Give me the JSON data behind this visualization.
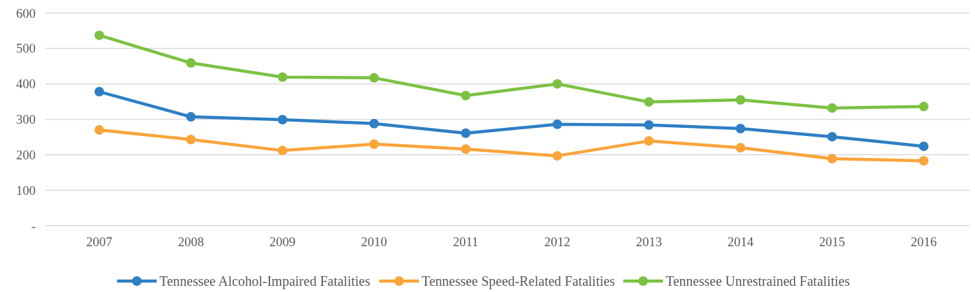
{
  "chart_data": {
    "type": "line",
    "categories": [
      "2007",
      "2008",
      "2009",
      "2010",
      "2011",
      "2012",
      "2013",
      "2014",
      "2015",
      "2016"
    ],
    "series": [
      {
        "name": "Tennessee Alcohol-Impaired Fatalities",
        "color": "#2e7fc4",
        "values": [
          378,
          307,
          299,
          288,
          261,
          286,
          284,
          274,
          251,
          224
        ]
      },
      {
        "name": "Tennessee Speed-Related Fatalities",
        "color": "#faa43a",
        "values": [
          270,
          243,
          212,
          230,
          216,
          197,
          239,
          220,
          189,
          183
        ]
      },
      {
        "name": "Tennessee Unrestrained Fatalities",
        "color": "#7cc142",
        "values": [
          537,
          459,
          419,
          417,
          367,
          400,
          349,
          355,
          332,
          336
        ]
      }
    ],
    "ylim": [
      0,
      600
    ],
    "yticks": [
      {
        "value": 0,
        "label": "-"
      },
      100,
      200,
      300,
      400,
      500,
      600
    ],
    "grid": "y",
    "legend": "bottom",
    "marker": "circle",
    "line_style": "solid"
  }
}
